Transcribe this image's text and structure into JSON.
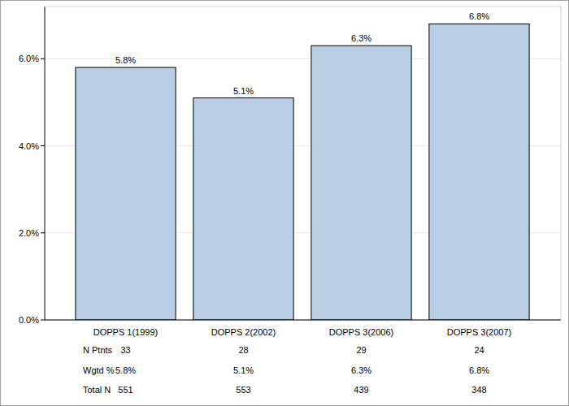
{
  "chart_data": {
    "type": "bar",
    "categories": [
      "DOPPS 1(1999)",
      "DOPPS 2(2002)",
      "DOPPS 3(2006)",
      "DOPPS 3(2007)"
    ],
    "values": [
      5.8,
      5.1,
      6.3,
      6.8
    ],
    "value_labels": [
      "5.8%",
      "5.1%",
      "6.3%",
      "6.8%"
    ],
    "data_labels": true,
    "color": "#b9cde5",
    "ylim": [
      0,
      7.2
    ],
    "yticks": [
      {
        "value": 0,
        "label": "0.0%"
      },
      {
        "value": 2,
        "label": "2.0%"
      },
      {
        "value": 4,
        "label": "4.0%"
      },
      {
        "value": 6,
        "label": "6.0%"
      }
    ],
    "grid": true,
    "table": {
      "rows": [
        {
          "label": "N Ptnts",
          "values": [
            33,
            28,
            29,
            24
          ]
        },
        {
          "label": "Wgtd %",
          "values": [
            "5.8%",
            "5.1%",
            "6.3%",
            "6.8%"
          ]
        },
        {
          "label": "Total N",
          "values": [
            551,
            553,
            439,
            348
          ]
        }
      ]
    }
  }
}
